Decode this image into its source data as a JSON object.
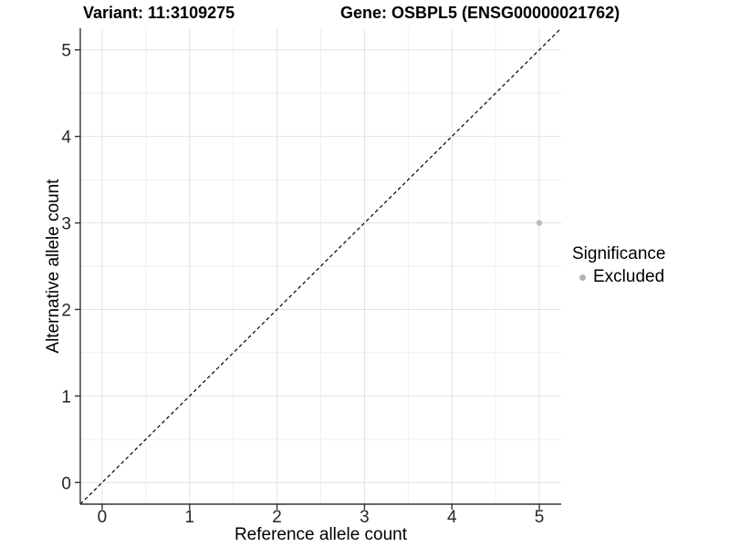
{
  "titles": {
    "variant": "Variant: 11:3109275",
    "gene": "Gene: OSBPL5 (ENSG00000021762)"
  },
  "chart_data": {
    "type": "scatter",
    "xlabel": "Reference allele count",
    "ylabel": "Alternative allele count",
    "xlim": [
      -0.25,
      5.25
    ],
    "ylim": [
      -0.25,
      5.25
    ],
    "xticks": [
      0,
      1,
      2,
      3,
      4,
      5
    ],
    "yticks": [
      0,
      1,
      2,
      3,
      4,
      5
    ],
    "grid": {
      "major": true,
      "minor": true
    },
    "series": [
      {
        "name": "Excluded",
        "color": "#bbbbbb",
        "points": [
          {
            "x": 5,
            "y": 3
          }
        ]
      }
    ],
    "identity_line": {
      "style": "dashed",
      "color": "#000000",
      "from": [
        -0.25,
        -0.25
      ],
      "to": [
        5.25,
        5.25
      ]
    },
    "legend": {
      "title": "Significance",
      "position": "right",
      "items": [
        {
          "label": "Excluded",
          "color": "#b3b3b3",
          "marker": "circle"
        }
      ]
    }
  },
  "colors": {
    "background": "#ffffff",
    "grid_major": "#e2e2e2",
    "grid_minor": "#efefef",
    "axis_line": "#333333",
    "tick_mark": "#333333",
    "tick_text": "#262626",
    "title_text": "#000000"
  }
}
